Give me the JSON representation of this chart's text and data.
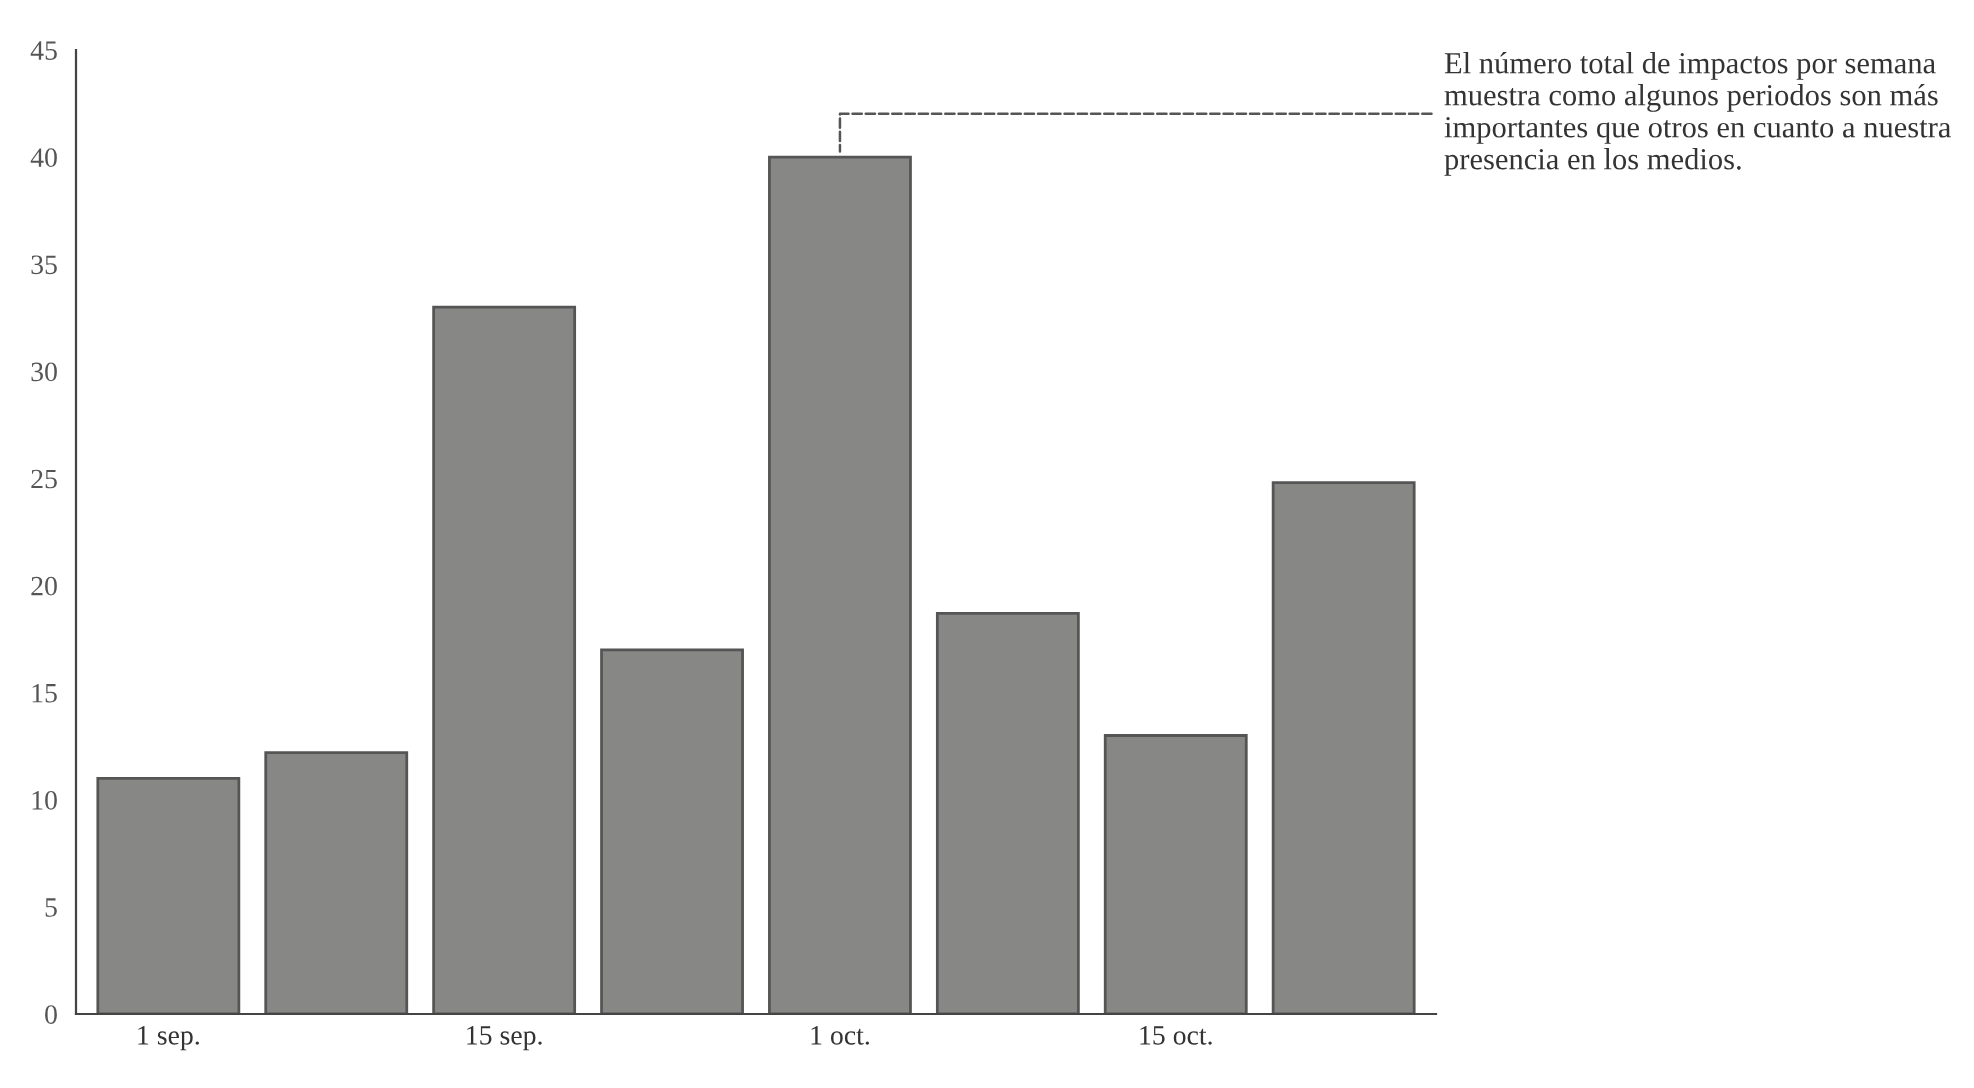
{
  "chart_data": {
    "type": "bar",
    "categories": [
      "1 sep.",
      null,
      "15 sep.",
      null,
      "1 oct.",
      null,
      "15 oct.",
      null
    ],
    "values": [
      11,
      12.2,
      33,
      17,
      40,
      18.7,
      13,
      24.8
    ],
    "color": "#878886",
    "ylim": [
      0,
      45
    ],
    "yticks": [
      0,
      5,
      10,
      15,
      20,
      25,
      30,
      35,
      40,
      45
    ],
    "grid": false,
    "legend": false,
    "annotations": [
      {
        "text": "El número total de impactos por semana muestra como algunos periodos son más importantes que otros en cuanto a nuestra presencia en los medios.",
        "x": "1 oct.",
        "y": 40
      }
    ]
  }
}
